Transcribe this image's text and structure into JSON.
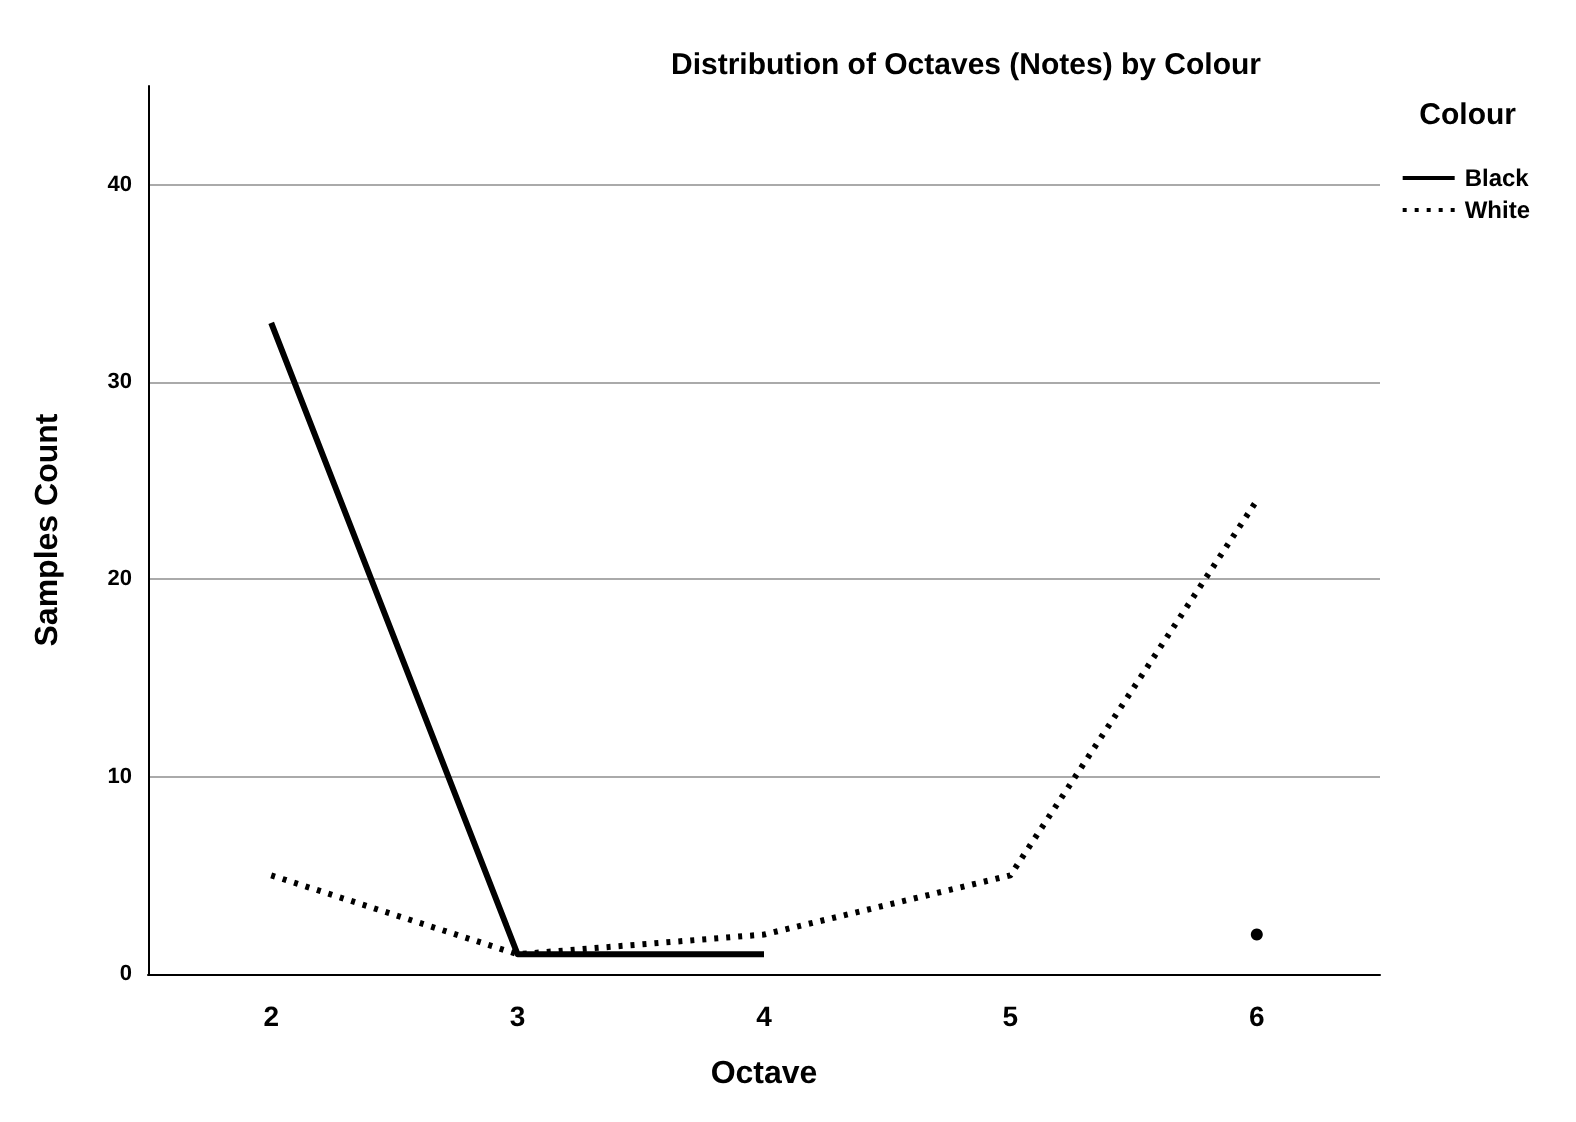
{
  "chart_data": {
    "type": "line",
    "title": "Distribution of Octaves (Notes) by Colour",
    "xlabel": "Octave",
    "ylabel": "Samples Count",
    "legend_title": "Colour",
    "categories": [
      "2",
      "3",
      "4",
      "5",
      "6"
    ],
    "series": [
      {
        "name": "Black",
        "color": "#000000",
        "line_style": "solid",
        "values": [
          33,
          1,
          1,
          null,
          2
        ]
      },
      {
        "name": "White",
        "color": "#000000",
        "line_style": "dotted",
        "values": [
          5,
          1,
          2,
          5,
          24
        ]
      }
    ],
    "ylim": [
      0,
      45
    ],
    "yticks": [
      0,
      10,
      20,
      30,
      40
    ],
    "grid": "y",
    "legend": "top right",
    "marker": "none"
  }
}
